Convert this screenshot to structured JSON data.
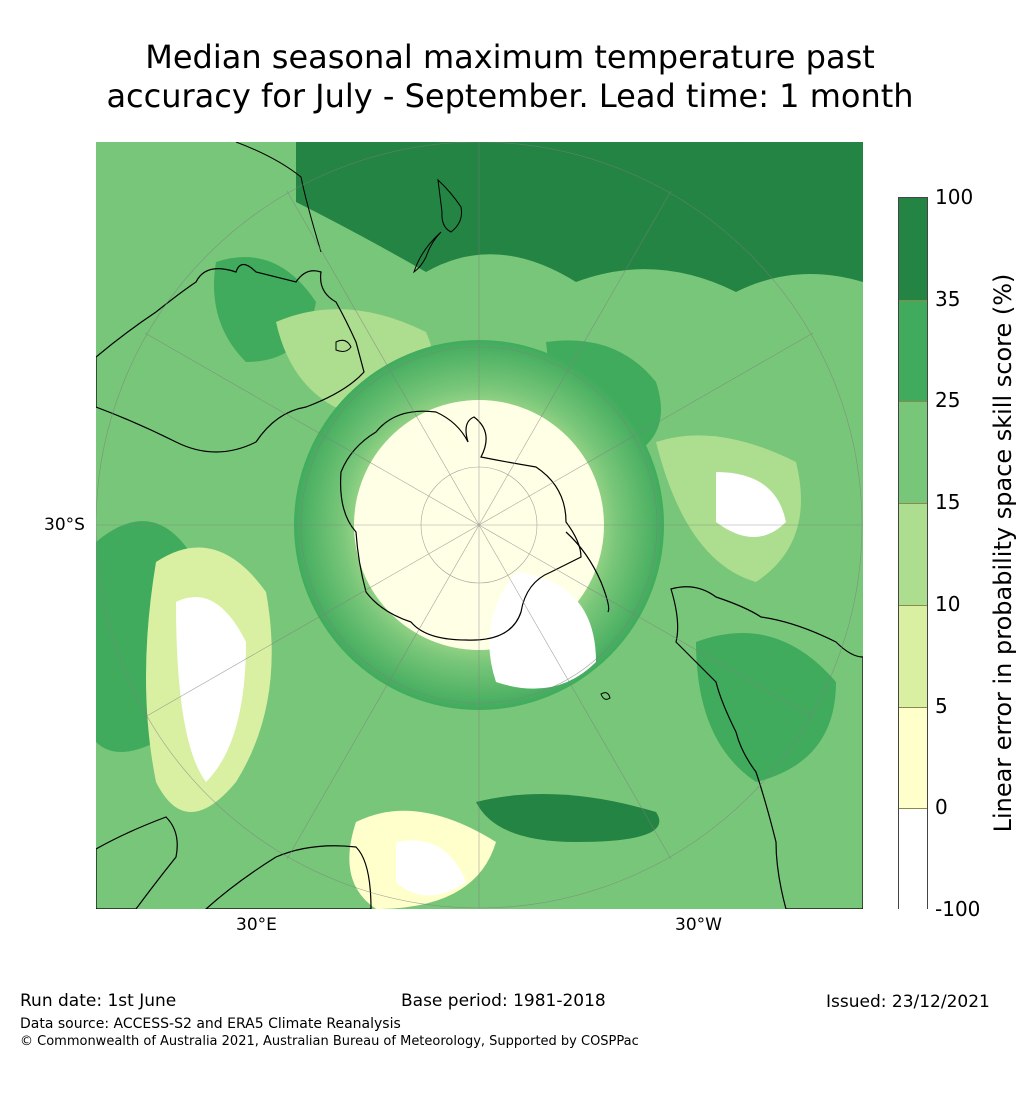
{
  "header": {
    "title_line1": "Median seasonal maximum temperature past",
    "title_line2": "accuracy for July - September. Lead time: 1 month"
  },
  "map": {
    "projection": "south-polar-stereographic",
    "labels": {
      "lat": "30°S",
      "lon_east": "30°E",
      "lon_west": "30°W"
    },
    "coastline_color": "#000000",
    "grid_color": "#7f7f7f"
  },
  "colorbar": {
    "title": "Linear error in probability space skill score (%)",
    "ticks": [
      "100",
      "35",
      "25",
      "15",
      "10",
      "5",
      "0",
      "-100"
    ],
    "bands": [
      {
        "range": "35 to 100",
        "color": "#238443"
      },
      {
        "range": "25 to 35",
        "color": "#41ab5d"
      },
      {
        "range": "15 to 25",
        "color": "#78c679"
      },
      {
        "range": "10 to 15",
        "color": "#addd8e"
      },
      {
        "range": "5 to 10",
        "color": "#d9f0a3"
      },
      {
        "range": "0 to 5",
        "color": "#ffffcc"
      },
      {
        "range": "-100 to 0",
        "color": "#ffffff"
      }
    ]
  },
  "footer": {
    "run_date": "Run date: 1st June",
    "base_period": "Base period: 1981-2018",
    "issued": "Issued: 23/12/2021",
    "data_source": "Data source: ACCESS-S2 and ERA5 Climate Reanalysis",
    "copyright": "© Commonwealth of Australia 2021, Australian Bureau of Meteorology, Supported by COSPPac"
  }
}
